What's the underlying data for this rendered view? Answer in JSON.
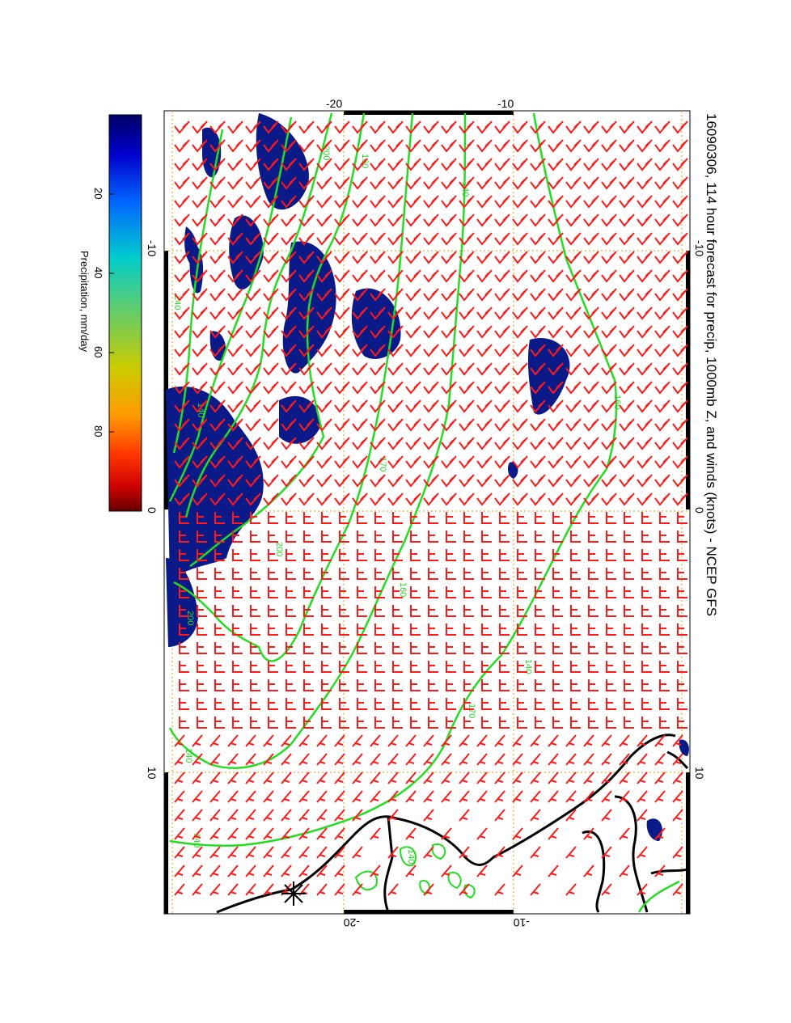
{
  "title": "16090306, 114 hour forecast for precip, 1000mb Z, and winds (knots) - NCEP GFS",
  "colorbar": {
    "label": "Precipitation, mm/day",
    "ticks": [
      "20",
      "40",
      "60",
      "80"
    ],
    "tick_values": [
      20,
      40,
      60,
      80
    ],
    "range": [
      0,
      100
    ],
    "colors": [
      "#000066",
      "#0000cc",
      "#0066ff",
      "#00cccc",
      "#66cc66",
      "#cccc00",
      "#ff9900",
      "#ff3300",
      "#cc0000",
      "#660000"
    ]
  },
  "axes": {
    "left_ticks": [
      "-10",
      "0",
      "10"
    ],
    "right_ticks": [
      "-10",
      "0",
      "10"
    ],
    "top_ticks": [
      "-20",
      "-10"
    ],
    "bottom_ticks": [
      "-20",
      "-10"
    ]
  },
  "contour_labels": [
    "200",
    "160",
    "140",
    "200",
    "170",
    "160",
    "140",
    "240",
    "200",
    "170",
    "160",
    "140",
    "140",
    "140",
    "140"
  ],
  "colors": {
    "contour": "#22dd22",
    "wind_barb": "#ff1a1a",
    "precip": "#0a1a88",
    "coast": "#000000",
    "grid": "#e0a000"
  },
  "chart_data": {
    "type": "map",
    "title": "16090306, 114 hour forecast for precip, 1000mb Z, and winds (knots) - NCEP GFS",
    "colorbar_label": "Precipitation, mm/day",
    "colorbar_ticks": [
      20,
      40,
      60,
      80
    ],
    "longitude_ticks": [
      -10,
      0,
      10
    ],
    "latitude_ticks": [
      -20,
      -10
    ],
    "contour_levels": [
      140,
      160,
      170,
      200,
      240
    ]
  }
}
